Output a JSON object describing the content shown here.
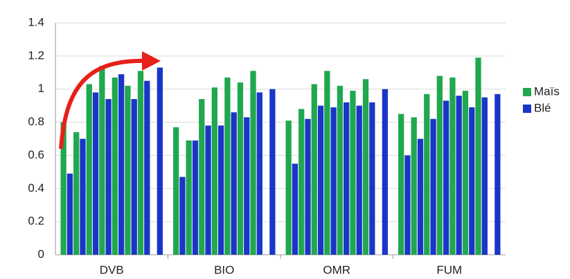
{
  "chart_data": {
    "type": "grouped-bar",
    "categories": [
      "DVB",
      "BIO",
      "OMR",
      "FUM"
    ],
    "series": [
      {
        "name": "Maïs",
        "color": "#1fa84f",
        "values": [
          [
            0.8,
            0.74,
            1.03,
            1.14,
            1.07,
            1.02,
            1.11,
            null
          ],
          [
            0.77,
            0.69,
            0.94,
            1.01,
            1.07,
            1.04,
            1.11,
            null
          ],
          [
            0.81,
            0.88,
            1.03,
            1.11,
            1.02,
            0.99,
            1.06,
            null
          ],
          [
            0.85,
            0.83,
            0.97,
            1.08,
            1.07,
            0.99,
            1.19,
            null
          ]
        ]
      },
      {
        "name": "Blé",
        "color": "#1a36c8",
        "values": [
          [
            0.49,
            0.7,
            0.98,
            0.94,
            1.09,
            0.94,
            1.05,
            1.13
          ],
          [
            0.47,
            0.69,
            0.78,
            0.78,
            0.86,
            0.83,
            0.98,
            1.0
          ],
          [
            0.55,
            0.82,
            0.9,
            0.89,
            0.92,
            0.9,
            0.92,
            1.0
          ],
          [
            0.6,
            0.7,
            0.82,
            0.93,
            0.96,
            0.89,
            0.95,
            0.97
          ]
        ]
      }
    ],
    "ylim": [
      0,
      1.4
    ],
    "yticks": [
      0,
      0.2,
      0.4,
      0.6,
      0.8,
      1,
      1.2,
      1.4
    ],
    "grid": true,
    "legend": "right"
  }
}
